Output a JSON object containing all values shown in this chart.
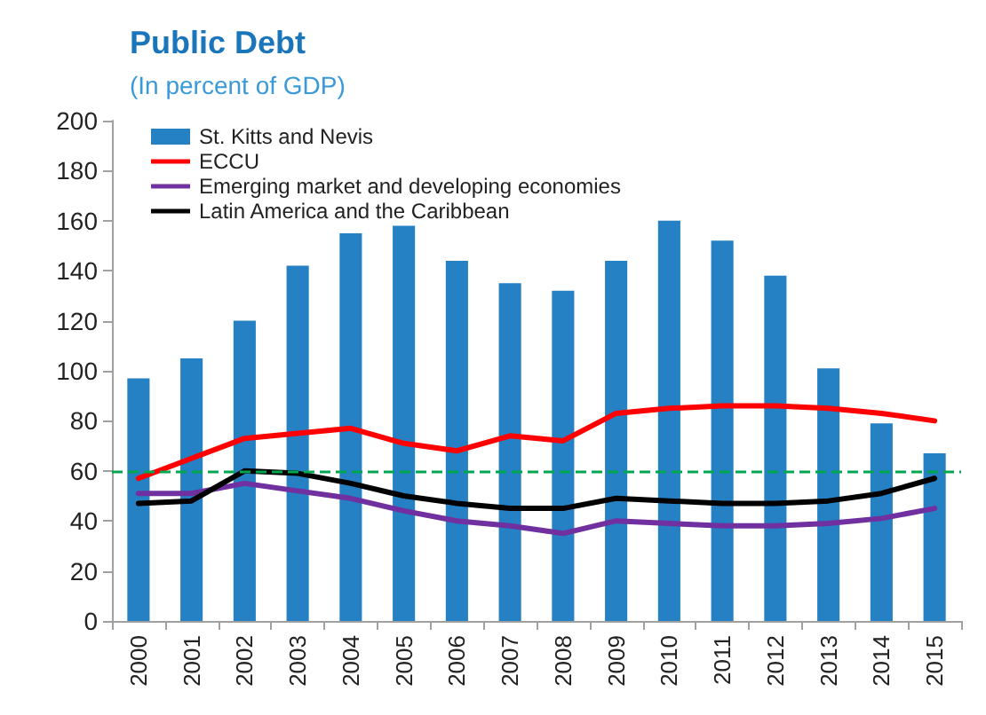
{
  "chart_data": {
    "type": "bar",
    "title": "Public Debt",
    "subtitle": "(In percent of GDP)",
    "categories": [
      "2000",
      "2001",
      "2002",
      "2003",
      "2004",
      "2005",
      "2006",
      "2007",
      "2008",
      "2009",
      "2010",
      "2011",
      "2012",
      "2013",
      "2014",
      "2015"
    ],
    "series": [
      {
        "name": "St. Kitts and Nevis",
        "color": "#2581c4",
        "values": [
          97,
          105,
          120,
          142,
          155,
          158,
          144,
          135,
          132,
          144,
          160,
          152,
          138,
          101,
          79,
          67
        ]
      },
      {
        "name": "ECCU",
        "type": "line",
        "color": "#ff0000",
        "values": [
          57,
          65,
          73,
          75,
          77,
          71,
          68,
          74,
          72,
          83,
          85,
          86,
          86,
          85,
          83,
          80
        ]
      },
      {
        "name": "Emerging market and developing economies",
        "type": "line",
        "color": "#7030a0",
        "values": [
          51,
          51,
          55,
          52,
          49,
          44,
          40,
          38,
          35,
          40,
          39,
          38,
          38,
          39,
          41,
          45
        ]
      },
      {
        "name": "Latin America and the Caribbean",
        "type": "line",
        "color": "#000000",
        "values": [
          47,
          48,
          60,
          59,
          55,
          50,
          47,
          45,
          45,
          49,
          48,
          47,
          47,
          48,
          51,
          57
        ]
      }
    ],
    "ylim": [
      0,
      200
    ],
    "yticks": [
      0,
      20,
      40,
      60,
      80,
      100,
      120,
      140,
      160,
      180,
      200
    ],
    "ref_lines": [
      {
        "axis": "y",
        "value": 60,
        "color": "#00a650",
        "line_style": "dashed"
      }
    ],
    "grid": false,
    "legend": "top left",
    "marker": "none",
    "line_style": "solid"
  }
}
